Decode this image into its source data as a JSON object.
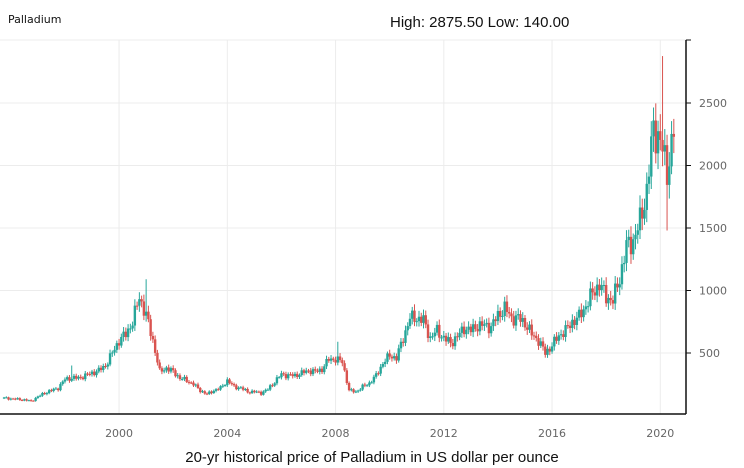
{
  "chart_data": {
    "type": "candlestick",
    "title": "Palladium",
    "high_low_label": "High: 2875.50 Low: 140.00",
    "caption": "20-yr historical price of Palladium in US dollar per ounce",
    "xlabel": "",
    "ylabel": "",
    "x_ticks": [
      "2000",
      "2004",
      "2008",
      "2012",
      "2016",
      "2020"
    ],
    "y_ticks": [
      "500",
      "1000",
      "1500",
      "2000",
      "2500"
    ],
    "xlim": [
      1995.6,
      2020.95
    ],
    "ylim": [
      0,
      3000
    ],
    "grid": true,
    "y_axis_side": "right",
    "start_year": 1995.75,
    "step_years": 0.25,
    "quarterly_close": [
      140,
      135,
      130,
      125,
      115,
      150,
      180,
      200,
      220,
      290,
      300,
      300,
      320,
      340,
      360,
      400,
      500,
      600,
      650,
      750,
      950,
      800,
      600,
      350,
      380,
      350,
      300,
      280,
      250,
      200,
      170,
      200,
      220,
      280,
      230,
      220,
      190,
      190,
      180,
      210,
      270,
      330,
      320,
      320,
      340,
      360,
      350,
      370,
      450,
      450,
      430,
      200,
      190,
      230,
      260,
      320,
      420,
      480,
      460,
      620,
      780,
      780,
      760,
      620,
      680,
      620,
      580,
      630,
      700,
      680,
      720,
      720,
      710,
      800,
      860,
      780,
      780,
      740,
      650,
      600,
      500,
      560,
      640,
      680,
      750,
      790,
      880,
      980,
      1050,
      950,
      920,
      1100,
      1350,
      1400,
      1550,
      1800,
      2300,
      2200,
      1950,
      2280
    ],
    "high_overrides": [
      [
        1998.25,
        400
      ],
      [
        2001.0,
        1090
      ],
      [
        2008.1,
        590
      ],
      [
        2020.1,
        2875.5
      ],
      [
        2020.25,
        1480
      ]
    ],
    "colors": {
      "up": "#26a69a",
      "down": "#d9534f",
      "grid": "#ececec",
      "axis": "#111111"
    }
  }
}
